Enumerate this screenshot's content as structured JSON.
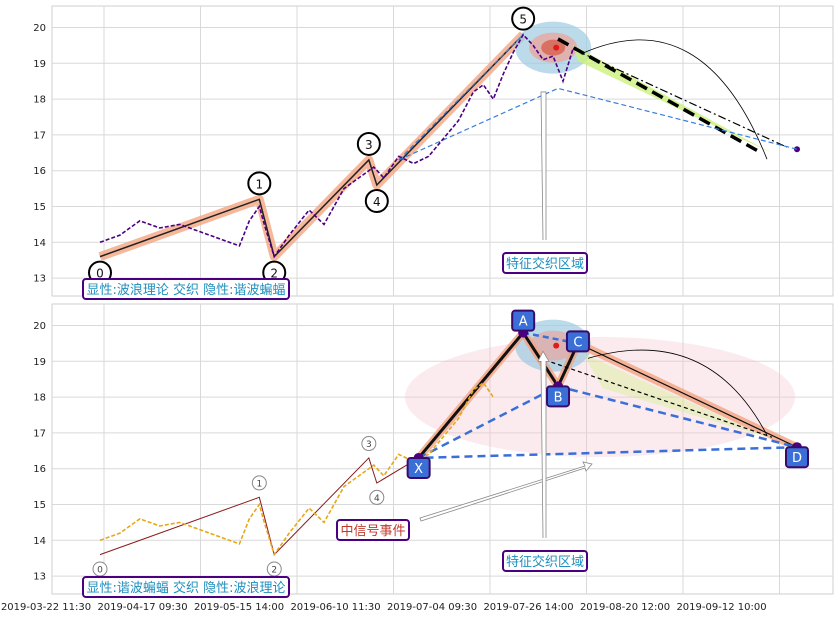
{
  "chart_data": [
    {
      "type": "line",
      "ylim": [
        12.5,
        20.6
      ],
      "yticks": [
        13,
        14,
        15,
        16,
        17,
        18,
        19,
        20
      ],
      "x_range": [
        0,
        800
      ],
      "grid": true,
      "series": [
        {
          "style": "dashed",
          "color": "#4b0082",
          "points": [
            [
              0,
              14.0
            ],
            [
              20,
              14.2
            ],
            [
              40,
              14.6
            ],
            [
              60,
              14.4
            ],
            [
              80,
              14.5
            ],
            [
              100,
              14.3
            ],
            [
              120,
              14.1
            ],
            [
              140,
              13.9
            ],
            [
              150,
              14.6
            ],
            [
              160,
              15.0
            ],
            [
              165,
              14.5
            ],
            [
              175,
              13.6
            ],
            [
              190,
              14.2
            ],
            [
              210,
              14.9
            ],
            [
              225,
              14.5
            ],
            [
              245,
              15.5
            ],
            [
              265,
              15.9
            ],
            [
              275,
              16.1
            ],
            [
              285,
              15.8
            ],
            [
              300,
              16.4
            ],
            [
              315,
              16.2
            ],
            [
              330,
              16.4
            ],
            [
              345,
              16.9
            ],
            [
              360,
              17.4
            ],
            [
              375,
              18.2
            ],
            [
              385,
              18.4
            ],
            [
              395,
              18.0
            ],
            [
              405,
              18.7
            ],
            [
              415,
              19.3
            ],
            [
              425,
              19.8
            ],
            [
              435,
              19.5
            ],
            [
              445,
              19.1
            ],
            [
              455,
              19.2
            ],
            [
              465,
              18.5
            ],
            [
              475,
              19.4
            ]
          ]
        }
      ],
      "wave_points": [
        {
          "label": "0",
          "x": 0,
          "y": 13.6
        },
        {
          "label": "1",
          "x": 160,
          "y": 15.2
        },
        {
          "label": "2",
          "x": 175,
          "y": 13.6
        },
        {
          "label": "3",
          "x": 270,
          "y": 16.3
        },
        {
          "label": "4",
          "x": 278,
          "y": 15.6
        },
        {
          "label": "5",
          "x": 425,
          "y": 19.8
        }
      ],
      "projection": {
        "from": [
          475,
          19.4
        ],
        "to": [
          700,
          16.6
        ]
      },
      "annotations": [
        "特征交织区域"
      ],
      "legend_text": "显性:波浪理论 交织 隐性:谐波蝙蝠"
    },
    {
      "type": "line",
      "ylim": [
        12.5,
        20.6
      ],
      "yticks": [
        13,
        14,
        15,
        16,
        17,
        18,
        19,
        20
      ],
      "x_range": [
        0,
        800
      ],
      "xticks": [
        "2019-03-22 11:30",
        "2019-04-17 09:30",
        "2019-05-15 14:00",
        "2019-06-10 11:30",
        "2019-07-04 09:30",
        "2019-07-26 14:00",
        "2019-08-20 12:00",
        "2019-09-12 10:00"
      ],
      "grid": true,
      "series": [
        {
          "style": "dashed",
          "color": "#e6a817",
          "points": [
            [
              0,
              14.0
            ],
            [
              20,
              14.2
            ],
            [
              40,
              14.6
            ],
            [
              60,
              14.4
            ],
            [
              80,
              14.5
            ],
            [
              100,
              14.3
            ],
            [
              120,
              14.1
            ],
            [
              140,
              13.9
            ],
            [
              150,
              14.6
            ],
            [
              160,
              15.0
            ],
            [
              165,
              14.5
            ],
            [
              175,
              13.6
            ],
            [
              190,
              14.2
            ],
            [
              210,
              14.9
            ],
            [
              225,
              14.5
            ],
            [
              245,
              15.5
            ],
            [
              265,
              15.9
            ],
            [
              275,
              16.1
            ],
            [
              285,
              15.8
            ],
            [
              300,
              16.4
            ],
            [
              315,
              16.2
            ],
            [
              330,
              16.4
            ],
            [
              345,
              16.9
            ],
            [
              360,
              17.4
            ],
            [
              375,
              18.2
            ],
            [
              385,
              18.4
            ],
            [
              395,
              18.0
            ]
          ]
        }
      ],
      "wave_points": [
        {
          "label": "0",
          "x": 0,
          "y": 13.6
        },
        {
          "label": "1",
          "x": 160,
          "y": 15.2
        },
        {
          "label": "2",
          "x": 175,
          "y": 13.6
        },
        {
          "label": "3",
          "x": 270,
          "y": 16.3
        },
        {
          "label": "4",
          "x": 278,
          "y": 15.6
        }
      ],
      "harmonic_points": [
        {
          "label": "X",
          "x": 320,
          "y": 16.3
        },
        {
          "label": "A",
          "x": 425,
          "y": 19.8
        },
        {
          "label": "B",
          "x": 460,
          "y": 18.3
        },
        {
          "label": "C",
          "x": 480,
          "y": 19.5
        },
        {
          "label": "D",
          "x": 700,
          "y": 16.6
        }
      ],
      "annotations": [
        "中信号事件",
        "特征交织区域"
      ],
      "legend_text": "显性:谐波蝙蝠 交织 隐性:波浪理论"
    }
  ]
}
